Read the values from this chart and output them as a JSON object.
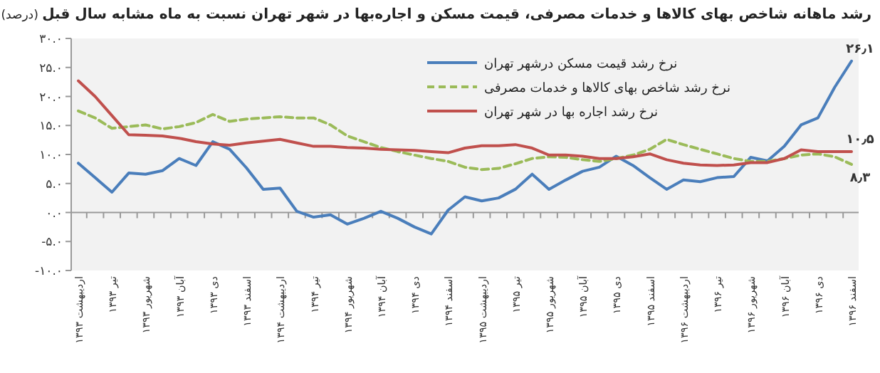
{
  "chart_data": {
    "type": "line",
    "title": "**رشد ماهانه شاخص بهای کالاها و خدمات مصرفی، قیمت مسکن و اجاره‌بها در شهر تهران نسبت به ماه مشابه سال قبل** (درصد)",
    "categories": [
      "اردیبهشت ۱۳۹۳",
      null,
      "تیر ۱۳۹۳",
      null,
      "شهریور ۱۳۹۳",
      null,
      "آبان ۱۳۹۳",
      null,
      "دی ۱۳۹۳",
      null,
      "اسفند ۱۳۹۳",
      null,
      "اردیبهشت ۱۳۹۴",
      null,
      "تیر ۱۳۹۴",
      null,
      "شهریور ۱۳۹۴",
      null,
      "آبان ۱۳۹۴",
      null,
      "دی ۱۳۹۴",
      null,
      "اسفند ۱۳۹۴",
      null,
      "اردیبهشت ۱۳۹۵",
      null,
      "تیر ۱۳۹۵",
      null,
      "شهریور ۱۳۹۵",
      null,
      "آبان ۱۳۹۵",
      null,
      "دی ۱۳۹۵",
      null,
      "اسفند ۱۳۹۵",
      null,
      "اردیبهشت ۱۳۹۶",
      null,
      "تیر ۱۳۹۶",
      null,
      "شهریور ۱۳۹۶",
      null,
      "آبان ۱۳۹۶",
      null,
      "دی ۱۳۹۶",
      null,
      "اسفند ۱۳۹۶"
    ],
    "series": [
      {
        "name": "نرخ رشد قیمت مسکن درشهر تهران",
        "color": "#4a7ebb",
        "line_style": "solid",
        "values": [
          8.5,
          6.0,
          3.5,
          6.8,
          6.6,
          7.2,
          9.3,
          8.1,
          12.2,
          10.9,
          7.7,
          4.0,
          4.2,
          0.2,
          -0.8,
          -0.4,
          -2.0,
          -1.0,
          0.2,
          -1.0,
          -2.5,
          -3.7,
          0.4,
          2.7,
          2.0,
          2.5,
          4.0,
          6.6,
          4.0,
          5.6,
          7.1,
          7.8,
          9.7,
          8.1,
          6.0,
          4.0,
          5.6,
          5.3,
          6.0,
          6.2,
          9.5,
          8.9,
          11.4,
          15.1,
          16.3,
          21.6,
          26.1
        ],
        "value_labels": [
          null,
          null,
          null,
          null,
          null,
          null,
          null,
          null,
          null,
          null,
          null,
          null,
          null,
          null,
          null,
          null,
          null,
          null,
          null,
          null,
          null,
          null,
          null,
          null,
          null,
          null,
          null,
          null,
          null,
          null,
          null,
          null,
          null,
          null,
          null,
          null,
          null,
          null,
          null,
          null,
          null,
          null,
          null,
          null,
          null,
          null,
          "۲۶٫۱"
        ]
      },
      {
        "name": "نرخ رشد شاخص بهای کالاها و خدمات مصرفی",
        "color": "#9bbb59",
        "line_style": "dashed",
        "values": [
          17.5,
          16.3,
          14.5,
          14.8,
          15.1,
          14.4,
          14.8,
          15.5,
          16.9,
          15.7,
          16.1,
          16.3,
          16.5,
          16.3,
          16.3,
          15.1,
          13.2,
          12.2,
          11.2,
          10.5,
          9.9,
          9.3,
          8.8,
          7.8,
          7.4,
          7.6,
          8.4,
          9.3,
          9.6,
          9.5,
          9.1,
          8.8,
          9.3,
          9.9,
          10.9,
          12.6,
          11.7,
          10.9,
          10.1,
          9.3,
          8.8,
          8.8,
          9.3,
          9.9,
          10.1,
          9.6,
          8.3
        ],
        "value_labels": [
          null,
          null,
          null,
          null,
          null,
          null,
          null,
          null,
          null,
          null,
          null,
          null,
          null,
          null,
          null,
          null,
          null,
          null,
          null,
          null,
          null,
          null,
          null,
          null,
          null,
          null,
          null,
          null,
          null,
          null,
          null,
          null,
          null,
          null,
          null,
          null,
          null,
          null,
          null,
          null,
          null,
          null,
          null,
          null,
          null,
          null,
          "۸٫۳"
        ]
      },
      {
        "name": "نرخ رشد اجاره بها در شهر تهران",
        "color": "#c0504d",
        "line_style": "solid",
        "values": [
          22.7,
          20.0,
          16.7,
          13.4,
          13.3,
          13.2,
          12.8,
          12.2,
          11.8,
          11.6,
          12.0,
          12.3,
          12.6,
          12.0,
          11.4,
          11.4,
          11.2,
          11.1,
          10.9,
          10.8,
          10.7,
          10.5,
          10.3,
          11.1,
          11.5,
          11.5,
          11.7,
          11.1,
          9.9,
          9.9,
          9.7,
          9.3,
          9.3,
          9.6,
          10.1,
          9.1,
          8.5,
          8.2,
          8.1,
          8.2,
          8.6,
          8.6,
          9.3,
          10.8,
          10.5,
          10.5,
          10.5
        ],
        "value_labels": [
          null,
          null,
          null,
          null,
          null,
          null,
          null,
          null,
          null,
          null,
          null,
          null,
          null,
          null,
          null,
          null,
          null,
          null,
          null,
          null,
          null,
          null,
          null,
          null,
          null,
          null,
          null,
          null,
          null,
          null,
          null,
          null,
          null,
          null,
          null,
          null,
          null,
          null,
          null,
          null,
          null,
          null,
          null,
          null,
          null,
          null,
          "۱۰٫۵"
        ]
      }
    ],
    "ylim": [
      -10,
      30
    ],
    "yticks": [
      {
        "value": 30,
        "label": "۳۰.۰"
      },
      {
        "value": 25,
        "label": "۲۵.۰"
      },
      {
        "value": 20,
        "label": "۲۰.۰"
      },
      {
        "value": 15,
        "label": "۱۵.۰"
      },
      {
        "value": 10,
        "label": "۱۰.۰"
      },
      {
        "value": 5,
        "label": "۵.۰"
      },
      {
        "value": 0,
        "label": "۰.۰"
      },
      {
        "value": -5,
        "label": "-۵.۰"
      },
      {
        "value": -10,
        "label": "-۱۰.۰"
      }
    ],
    "legend": "top right",
    "marker": "none"
  }
}
